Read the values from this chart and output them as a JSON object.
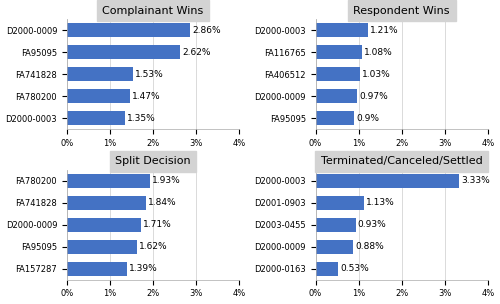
{
  "panels": [
    {
      "title": "Complainant Wins",
      "categories": [
        "D2000-0009",
        "FA95095",
        "FA741828",
        "FA780200",
        "D2000-0003"
      ],
      "values": [
        2.86,
        2.62,
        1.53,
        1.47,
        1.35
      ],
      "labels": [
        "2.86%",
        "2.62%",
        "1.53%",
        "1.47%",
        "1.35%"
      ],
      "xlim": [
        0,
        4
      ]
    },
    {
      "title": "Respondent Wins",
      "categories": [
        "D2000-0003",
        "FA116765",
        "FA406512",
        "D2000-0009",
        "FA95095"
      ],
      "values": [
        1.21,
        1.08,
        1.03,
        0.97,
        0.9
      ],
      "labels": [
        "1.21%",
        "1.08%",
        "1.03%",
        "0.97%",
        "0.9%"
      ],
      "xlim": [
        0,
        4
      ]
    },
    {
      "title": "Split Decision",
      "categories": [
        "FA780200",
        "FA741828",
        "D2000-0009",
        "FA95095",
        "FA157287"
      ],
      "values": [
        1.93,
        1.84,
        1.71,
        1.62,
        1.39
      ],
      "labels": [
        "1.93%",
        "1.84%",
        "1.71%",
        "1.62%",
        "1.39%"
      ],
      "xlim": [
        0,
        4
      ]
    },
    {
      "title": "Terminated/Canceled/Settled",
      "categories": [
        "D2000-0003",
        "D2001-0903",
        "D2003-0455",
        "D2000-0009",
        "D2000-0163"
      ],
      "values": [
        3.33,
        1.13,
        0.93,
        0.88,
        0.53
      ],
      "labels": [
        "3.33%",
        "1.13%",
        "0.93%",
        "0.88%",
        "0.53%"
      ],
      "xlim": [
        0,
        4
      ]
    }
  ],
  "bar_color": "#4472C4",
  "title_bg_color": "#D3D3D3",
  "plot_bg_color": "#FFFFFF",
  "fig_bg_color": "#FFFFFF",
  "xticks": [
    0,
    1,
    2,
    3,
    4
  ],
  "xticklabels": [
    "0%",
    "1%",
    "2%",
    "3%",
    "4%"
  ],
  "bar_height": 0.65,
  "label_fontsize": 6.5,
  "tick_fontsize": 6.0,
  "title_fontsize": 8.0
}
